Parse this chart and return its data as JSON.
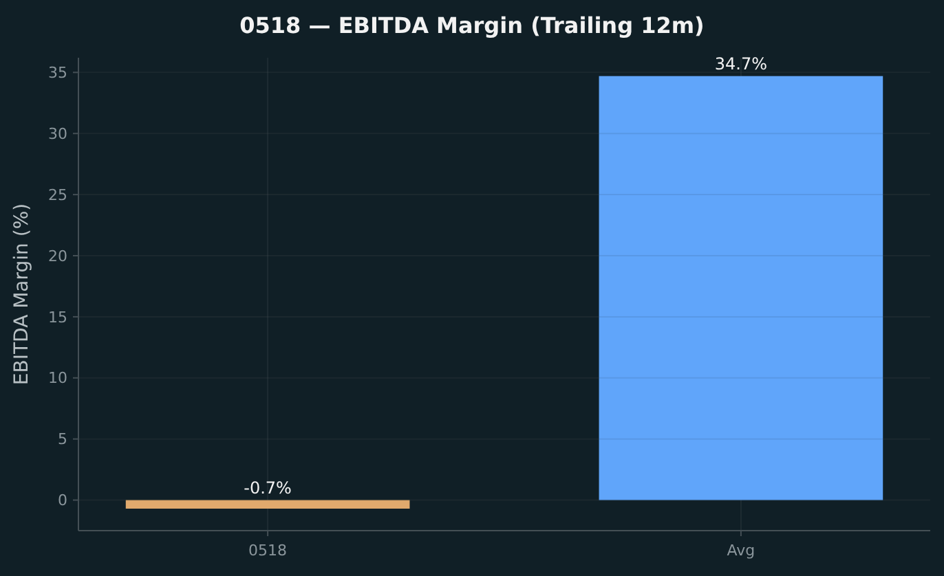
{
  "chart_data": {
    "type": "bar",
    "title": "0518 — EBITDA Margin (Trailing 12m)",
    "ylabel": "EBITDA Margin (%)",
    "categories": [
      "0518",
      "Avg"
    ],
    "values": [
      -0.7,
      34.7
    ],
    "colors": [
      "#e0a96d",
      "#60a5fa"
    ],
    "value_labels": [
      "-0.7%",
      "34.7%"
    ],
    "ylim": [
      -2.5,
      36.2
    ],
    "yticks": [
      0,
      5,
      10,
      15,
      20,
      25,
      30,
      35
    ],
    "grid": true
  }
}
